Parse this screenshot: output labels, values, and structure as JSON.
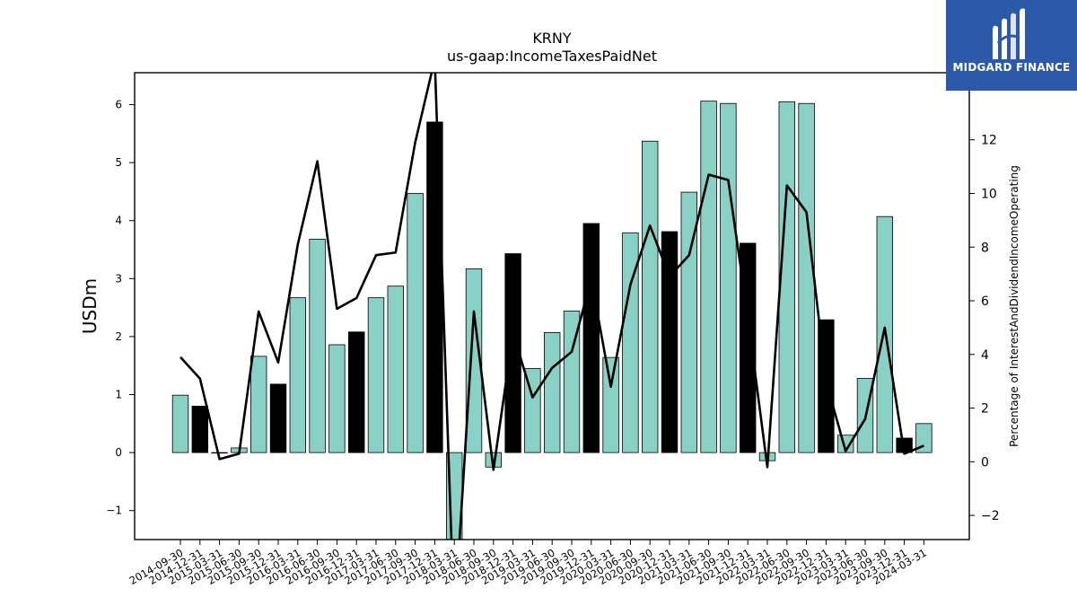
{
  "chart_data": {
    "type": "bar",
    "title": "KRNY",
    "subtitle": "us-gaap:IncomeTaxesPaidNet",
    "ylabel": "USDm",
    "ylabel_right": "Percentage of InterestAndDividendIncomeOperating",
    "ylim": [
      -1.5,
      6.55
    ],
    "ylim_right": [
      -2.9,
      14.5
    ],
    "yticks": [
      -1,
      0,
      1,
      2,
      3,
      4,
      5,
      6
    ],
    "yticks_right": [
      -2,
      0,
      2,
      4,
      6,
      8,
      10,
      12
    ],
    "categories": [
      "2014-09-30",
      "2014-12-31",
      "2015-03-31",
      "2015-06-30",
      "2015-09-30",
      "2015-12-31",
      "2016-03-31",
      "2016-06-30",
      "2016-09-30",
      "2016-12-31",
      "2017-03-31",
      "2017-06-30",
      "2017-09-30",
      "2017-12-31",
      "2018-03-31",
      "2018-06-30",
      "2018-09-30",
      "2018-12-31",
      "2019-03-31",
      "2019-06-30",
      "2019-09-30",
      "2019-12-31",
      "2020-03-31",
      "2020-06-30",
      "2020-09-30",
      "2020-12-31",
      "2021-03-31",
      "2021-06-30",
      "2021-09-30",
      "2021-12-31",
      "2022-03-31",
      "2022-06-30",
      "2022-09-30",
      "2022-12-31",
      "2023-03-31",
      "2023-06-30",
      "2023-09-30",
      "2023-12-31",
      "2024-03-31"
    ],
    "series": [
      {
        "kind": "bar",
        "values": [
          0.99,
          0.8,
          0.0,
          0.08,
          1.66,
          1.18,
          2.67,
          3.68,
          1.86,
          2.08,
          2.67,
          2.87,
          4.47,
          5.7,
          -1.6,
          3.17,
          -0.25,
          3.43,
          1.45,
          2.07,
          2.44,
          3.95,
          1.64,
          3.79,
          5.37,
          3.81,
          4.49,
          6.06,
          6.02,
          3.61,
          -0.14,
          6.05,
          6.02,
          2.29,
          0.3,
          1.28,
          4.07,
          0.25,
          0.5
        ],
        "highlight": [
          false,
          true,
          false,
          false,
          false,
          true,
          false,
          false,
          false,
          true,
          false,
          false,
          false,
          true,
          false,
          false,
          false,
          true,
          false,
          false,
          false,
          true,
          false,
          false,
          false,
          true,
          false,
          false,
          false,
          true,
          false,
          false,
          false,
          true,
          false,
          false,
          false,
          true,
          false
        ]
      },
      {
        "kind": "line",
        "axis": "right",
        "values": [
          3.9,
          3.1,
          0.1,
          0.3,
          5.6,
          3.7,
          8.1,
          11.2,
          5.7,
          6.1,
          7.7,
          7.8,
          11.9,
          15.0,
          -6.0,
          5.6,
          -0.3,
          4.8,
          2.4,
          3.5,
          4.1,
          6.8,
          2.8,
          6.6,
          8.8,
          6.9,
          7.7,
          10.7,
          10.5,
          5.4,
          -0.2,
          10.3,
          9.3,
          3.0,
          0.4,
          1.6,
          5.0,
          0.3,
          0.6
        ]
      }
    ],
    "colors": {
      "bar": "#88d1c4",
      "bar_highlight": "#000000",
      "line": "#000000"
    }
  },
  "logo": {
    "text": "MIDGARD FINANCE",
    "background": "#2d5aa8"
  }
}
